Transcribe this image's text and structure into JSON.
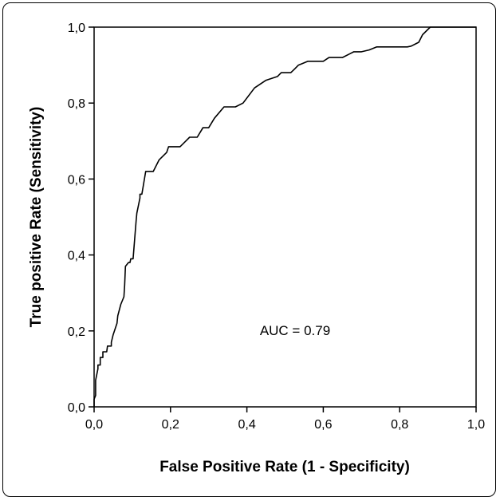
{
  "chart_data": {
    "type": "line",
    "title": "",
    "xlabel": "False Positive Rate (1 - Specificity)",
    "ylabel": "True positive Rate (Sensitivity)",
    "xlim": [
      0,
      1
    ],
    "ylim": [
      0,
      1
    ],
    "x_ticks": [
      "0,0",
      "0,2",
      "0,4",
      "0,6",
      "0,8",
      "1,0"
    ],
    "y_ticks": [
      "0,0",
      "0,2",
      "0,4",
      "0,6",
      "0,8",
      "1,0"
    ],
    "grid": false,
    "annotation": "AUC = 0.79",
    "series": [
      {
        "x": [
          0.0,
          0.0,
          0.004,
          0.004,
          0.01,
          0.01,
          0.016,
          0.016,
          0.023,
          0.023,
          0.033,
          0.035,
          0.045,
          0.045,
          0.05,
          0.06,
          0.062,
          0.07,
          0.078,
          0.08,
          0.082,
          0.09,
          0.094,
          0.096,
          0.102,
          0.106,
          0.11,
          0.112,
          0.12,
          0.12,
          0.125,
          0.13,
          0.135,
          0.14,
          0.155,
          0.16,
          0.17,
          0.18,
          0.19,
          0.195,
          0.215,
          0.225,
          0.24,
          0.25,
          0.27,
          0.285,
          0.3,
          0.315,
          0.34,
          0.37,
          0.39,
          0.42,
          0.45,
          0.48,
          0.49,
          0.515,
          0.525,
          0.535,
          0.56,
          0.59,
          0.6,
          0.615,
          0.63,
          0.65,
          0.67,
          0.68,
          0.7,
          0.72,
          0.74,
          0.79,
          0.8,
          0.82,
          0.83,
          0.84,
          0.85,
          0.86,
          0.88,
          0.89,
          0.9,
          1.0
        ],
        "y": [
          0.0,
          0.02,
          0.03,
          0.07,
          0.1,
          0.11,
          0.11,
          0.13,
          0.13,
          0.145,
          0.145,
          0.16,
          0.16,
          0.17,
          0.19,
          0.22,
          0.24,
          0.27,
          0.29,
          0.32,
          0.37,
          0.38,
          0.38,
          0.39,
          0.39,
          0.44,
          0.49,
          0.51,
          0.55,
          0.56,
          0.56,
          0.59,
          0.62,
          0.62,
          0.62,
          0.63,
          0.65,
          0.66,
          0.67,
          0.685,
          0.685,
          0.685,
          0.7,
          0.71,
          0.71,
          0.735,
          0.735,
          0.76,
          0.79,
          0.79,
          0.8,
          0.84,
          0.86,
          0.87,
          0.88,
          0.88,
          0.89,
          0.9,
          0.91,
          0.91,
          0.91,
          0.92,
          0.92,
          0.92,
          0.93,
          0.935,
          0.935,
          0.94,
          0.948,
          0.948,
          0.948,
          0.948,
          0.95,
          0.955,
          0.96,
          0.98,
          1.0,
          1.0,
          1.0,
          1.0
        ]
      }
    ]
  }
}
